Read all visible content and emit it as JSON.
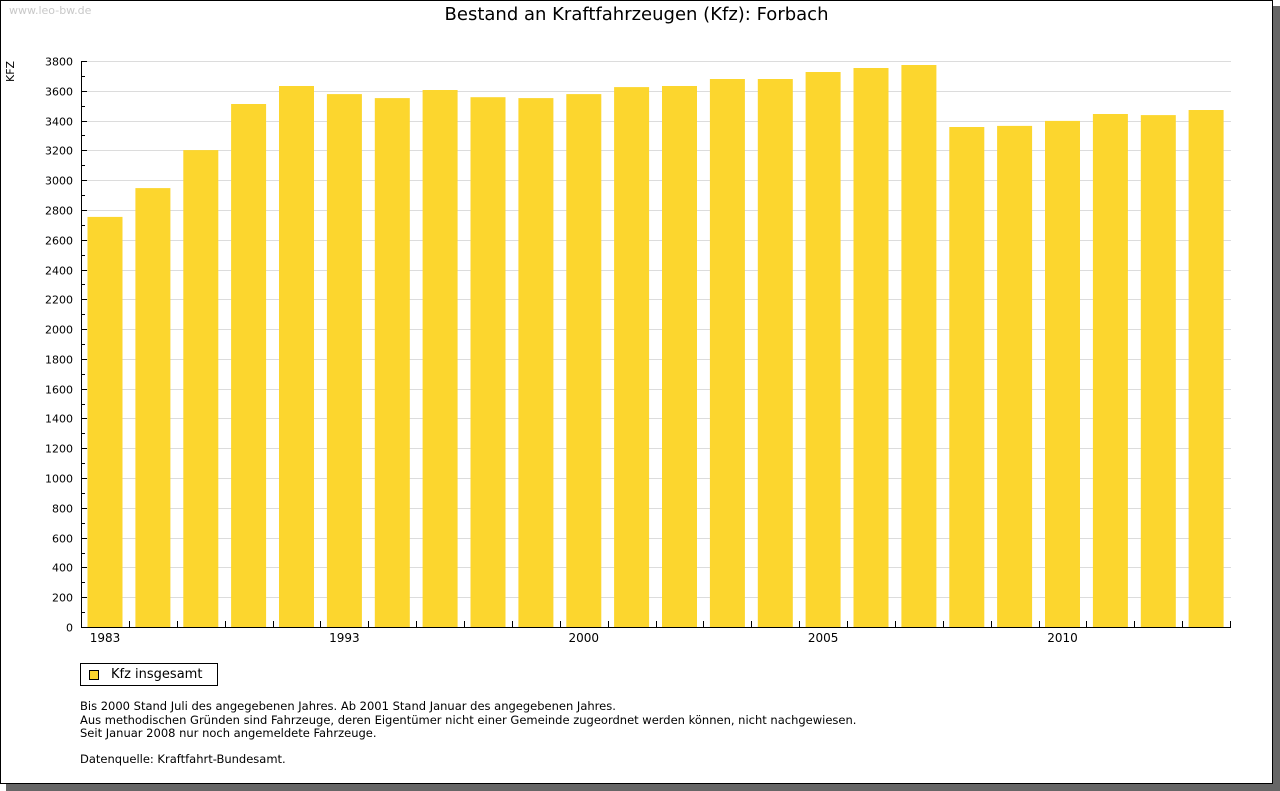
{
  "watermark": "www.leo-bw.de",
  "colors": {
    "bar": "#fcd62e",
    "grid": "#dcdcdc",
    "axis": "#000000"
  },
  "chart_data": {
    "type": "bar",
    "title": "Bestand an Kraftfahrzeugen (Kfz): Forbach",
    "xlabel": "",
    "ylabel": "KFZ",
    "ylim": [
      0,
      3800
    ],
    "yticks": [
      0,
      200,
      400,
      600,
      800,
      1000,
      1200,
      1400,
      1600,
      1800,
      2000,
      2200,
      2400,
      2600,
      2800,
      3000,
      3200,
      3400,
      3600,
      3800
    ],
    "grid": true,
    "legend_position": "bottom-left",
    "categories": [
      "1983",
      "",
      "",
      "",
      "",
      "1993",
      "",
      "",
      "",
      "",
      "2000",
      "",
      "",
      "",
      "",
      "2005",
      "",
      "",
      "",
      "",
      "2010",
      "",
      "",
      ""
    ],
    "series": [
      {
        "name": "Kfz insgesamt",
        "values": [
          2753,
          2947,
          3202,
          3511,
          3632,
          3578,
          3551,
          3605,
          3557,
          3551,
          3578,
          3625,
          3632,
          3679,
          3679,
          3726,
          3753,
          3773,
          3357,
          3364,
          3398,
          3444,
          3437,
          3471
        ]
      }
    ]
  },
  "legend": {
    "label": "Kfz insgesamt"
  },
  "notes": [
    "Bis 2000 Stand Juli des angegebenen Jahres. Ab 2001 Stand Januar des angegebenen Jahres.",
    "Aus methodischen Gründen sind Fahrzeuge, deren Eigentümer nicht einer Gemeinde zugeordnet werden können, nicht nachgewiesen.",
    "Seit Januar 2008 nur noch angemeldete Fahrzeuge."
  ],
  "source": "Datenquelle: Kraftfahrt-Bundesamt."
}
